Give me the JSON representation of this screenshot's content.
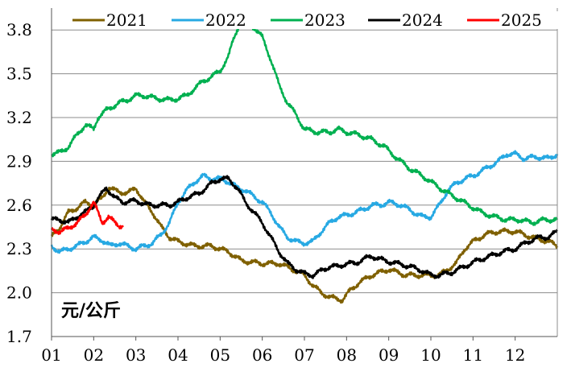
{
  "chart_data": {
    "type": "line",
    "unit_label": "元/公斤",
    "ylim": [
      1.7,
      3.95
    ],
    "yticks": [
      "1.7",
      "2.0",
      "2.3",
      "2.6",
      "2.9",
      "3.2",
      "3.5",
      "3.8"
    ],
    "xlim": [
      1,
      13
    ],
    "xticks": [
      "01",
      "02",
      "03",
      "04",
      "05",
      "06",
      "07",
      "08",
      "09",
      "10",
      "11",
      "12"
    ],
    "grid": "horizontal",
    "legend_position": "top",
    "series": [
      {
        "name": "2021",
        "color": "#7f6000",
        "points": [
          [
            1.0,
            2.38
          ],
          [
            1.2,
            2.45
          ],
          [
            1.4,
            2.55
          ],
          [
            1.6,
            2.58
          ],
          [
            1.8,
            2.62
          ],
          [
            2.0,
            2.6
          ],
          [
            2.2,
            2.65
          ],
          [
            2.35,
            2.72
          ],
          [
            2.5,
            2.7
          ],
          [
            2.8,
            2.68
          ],
          [
            3.0,
            2.72
          ],
          [
            3.2,
            2.62
          ],
          [
            3.4,
            2.55
          ],
          [
            3.6,
            2.45
          ],
          [
            3.8,
            2.38
          ],
          [
            4.0,
            2.35
          ],
          [
            4.4,
            2.32
          ],
          [
            4.8,
            2.32
          ],
          [
            5.0,
            2.3
          ],
          [
            5.2,
            2.28
          ],
          [
            5.5,
            2.22
          ],
          [
            6.0,
            2.2
          ],
          [
            6.4,
            2.2
          ],
          [
            6.8,
            2.15
          ],
          [
            7.0,
            2.12
          ],
          [
            7.2,
            2.05
          ],
          [
            7.4,
            2.0
          ],
          [
            7.6,
            1.97
          ],
          [
            7.9,
            1.95
          ],
          [
            8.1,
            2.02
          ],
          [
            8.3,
            2.07
          ],
          [
            8.6,
            2.12
          ],
          [
            9.0,
            2.16
          ],
          [
            9.4,
            2.12
          ],
          [
            9.8,
            2.12
          ],
          [
            10.2,
            2.12
          ],
          [
            10.6,
            2.2
          ],
          [
            10.8,
            2.3
          ],
          [
            11.0,
            2.35
          ],
          [
            11.3,
            2.4
          ],
          [
            11.6,
            2.42
          ],
          [
            12.0,
            2.42
          ],
          [
            12.4,
            2.38
          ],
          [
            12.8,
            2.35
          ],
          [
            13.0,
            2.32
          ]
        ]
      },
      {
        "name": "2022",
        "color": "#27a9e3",
        "points": [
          [
            1.0,
            2.32
          ],
          [
            1.2,
            2.28
          ],
          [
            1.4,
            2.3
          ],
          [
            1.6,
            2.32
          ],
          [
            1.8,
            2.35
          ],
          [
            2.0,
            2.38
          ],
          [
            2.2,
            2.36
          ],
          [
            2.4,
            2.32
          ],
          [
            2.6,
            2.34
          ],
          [
            2.8,
            2.32
          ],
          [
            3.0,
            2.3
          ],
          [
            3.2,
            2.32
          ],
          [
            3.4,
            2.34
          ],
          [
            3.6,
            2.4
          ],
          [
            3.8,
            2.48
          ],
          [
            4.0,
            2.62
          ],
          [
            4.2,
            2.7
          ],
          [
            4.4,
            2.76
          ],
          [
            4.6,
            2.8
          ],
          [
            4.8,
            2.78
          ],
          [
            5.0,
            2.78
          ],
          [
            5.2,
            2.76
          ],
          [
            5.4,
            2.72
          ],
          [
            5.6,
            2.7
          ],
          [
            5.8,
            2.66
          ],
          [
            6.0,
            2.62
          ],
          [
            6.2,
            2.55
          ],
          [
            6.4,
            2.45
          ],
          [
            6.6,
            2.38
          ],
          [
            6.8,
            2.35
          ],
          [
            7.0,
            2.34
          ],
          [
            7.2,
            2.35
          ],
          [
            7.4,
            2.42
          ],
          [
            7.6,
            2.48
          ],
          [
            7.8,
            2.52
          ],
          [
            8.0,
            2.53
          ],
          [
            8.2,
            2.55
          ],
          [
            8.4,
            2.57
          ],
          [
            8.6,
            2.6
          ],
          [
            8.8,
            2.6
          ],
          [
            9.0,
            2.62
          ],
          [
            9.3,
            2.6
          ],
          [
            9.6,
            2.55
          ],
          [
            9.8,
            2.52
          ],
          [
            10.0,
            2.52
          ],
          [
            10.2,
            2.6
          ],
          [
            10.4,
            2.7
          ],
          [
            10.6,
            2.75
          ],
          [
            10.8,
            2.78
          ],
          [
            11.0,
            2.8
          ],
          [
            11.3,
            2.85
          ],
          [
            11.6,
            2.9
          ],
          [
            11.8,
            2.95
          ],
          [
            12.0,
            2.95
          ],
          [
            12.2,
            2.92
          ],
          [
            12.5,
            2.93
          ],
          [
            12.8,
            2.92
          ],
          [
            13.0,
            2.95
          ]
        ]
      },
      {
        "name": "2023",
        "color": "#00b050",
        "points": [
          [
            1.0,
            2.95
          ],
          [
            1.2,
            2.96
          ],
          [
            1.4,
            3.0
          ],
          [
            1.6,
            3.08
          ],
          [
            1.8,
            3.15
          ],
          [
            2.0,
            3.12
          ],
          [
            2.1,
            3.2
          ],
          [
            2.3,
            3.25
          ],
          [
            2.6,
            3.3
          ],
          [
            2.8,
            3.32
          ],
          [
            3.0,
            3.35
          ],
          [
            3.2,
            3.35
          ],
          [
            3.5,
            3.33
          ],
          [
            3.8,
            3.32
          ],
          [
            4.0,
            3.33
          ],
          [
            4.2,
            3.35
          ],
          [
            4.4,
            3.4
          ],
          [
            4.6,
            3.45
          ],
          [
            4.8,
            3.48
          ],
          [
            5.0,
            3.52
          ],
          [
            5.2,
            3.62
          ],
          [
            5.3,
            3.72
          ],
          [
            5.4,
            3.8
          ],
          [
            5.5,
            3.86
          ],
          [
            5.6,
            3.85
          ],
          [
            5.8,
            3.82
          ],
          [
            6.0,
            3.75
          ],
          [
            6.2,
            3.6
          ],
          [
            6.4,
            3.42
          ],
          [
            6.6,
            3.3
          ],
          [
            6.8,
            3.22
          ],
          [
            7.0,
            3.12
          ],
          [
            7.3,
            3.1
          ],
          [
            7.6,
            3.1
          ],
          [
            7.8,
            3.12
          ],
          [
            8.0,
            3.1
          ],
          [
            8.3,
            3.08
          ],
          [
            8.6,
            3.05
          ],
          [
            8.9,
            3.0
          ],
          [
            9.2,
            2.92
          ],
          [
            9.5,
            2.85
          ],
          [
            9.8,
            2.8
          ],
          [
            10.0,
            2.76
          ],
          [
            10.3,
            2.7
          ],
          [
            10.6,
            2.65
          ],
          [
            10.9,
            2.6
          ],
          [
            11.2,
            2.55
          ],
          [
            11.5,
            2.52
          ],
          [
            11.8,
            2.5
          ],
          [
            12.1,
            2.5
          ],
          [
            12.4,
            2.48
          ],
          [
            12.7,
            2.5
          ],
          [
            13.0,
            2.5
          ]
        ]
      },
      {
        "name": "2024",
        "color": "#000000",
        "points": [
          [
            1.0,
            2.5
          ],
          [
            1.2,
            2.5
          ],
          [
            1.4,
            2.48
          ],
          [
            1.6,
            2.52
          ],
          [
            1.8,
            2.55
          ],
          [
            2.0,
            2.6
          ],
          [
            2.2,
            2.68
          ],
          [
            2.3,
            2.72
          ],
          [
            2.5,
            2.65
          ],
          [
            2.7,
            2.62
          ],
          [
            3.0,
            2.63
          ],
          [
            3.3,
            2.6
          ],
          [
            3.5,
            2.6
          ],
          [
            3.8,
            2.6
          ],
          [
            4.0,
            2.62
          ],
          [
            4.2,
            2.65
          ],
          [
            4.5,
            2.68
          ],
          [
            4.8,
            2.75
          ],
          [
            5.0,
            2.78
          ],
          [
            5.2,
            2.78
          ],
          [
            5.4,
            2.72
          ],
          [
            5.6,
            2.62
          ],
          [
            5.8,
            2.55
          ],
          [
            6.0,
            2.48
          ],
          [
            6.2,
            2.38
          ],
          [
            6.4,
            2.28
          ],
          [
            6.6,
            2.2
          ],
          [
            6.8,
            2.16
          ],
          [
            7.0,
            2.13
          ],
          [
            7.2,
            2.12
          ],
          [
            7.4,
            2.15
          ],
          [
            7.6,
            2.18
          ],
          [
            7.8,
            2.18
          ],
          [
            8.0,
            2.2
          ],
          [
            8.2,
            2.2
          ],
          [
            8.4,
            2.23
          ],
          [
            8.6,
            2.25
          ],
          [
            8.9,
            2.22
          ],
          [
            9.2,
            2.2
          ],
          [
            9.5,
            2.18
          ],
          [
            9.8,
            2.15
          ],
          [
            10.0,
            2.12
          ],
          [
            10.2,
            2.12
          ],
          [
            10.5,
            2.14
          ],
          [
            10.8,
            2.18
          ],
          [
            11.1,
            2.22
          ],
          [
            11.4,
            2.25
          ],
          [
            11.7,
            2.28
          ],
          [
            12.0,
            2.3
          ],
          [
            12.3,
            2.35
          ],
          [
            12.6,
            2.38
          ],
          [
            12.8,
            2.38
          ],
          [
            13.0,
            2.42
          ]
        ]
      },
      {
        "name": "2025",
        "color": "#ff0000",
        "points": [
          [
            1.0,
            2.43
          ],
          [
            1.2,
            2.42
          ],
          [
            1.4,
            2.44
          ],
          [
            1.6,
            2.48
          ],
          [
            1.8,
            2.53
          ],
          [
            1.9,
            2.58
          ],
          [
            2.0,
            2.62
          ],
          [
            2.1,
            2.55
          ],
          [
            2.2,
            2.48
          ],
          [
            2.35,
            2.52
          ],
          [
            2.5,
            2.48
          ],
          [
            2.6,
            2.46
          ],
          [
            2.7,
            2.46
          ]
        ]
      }
    ]
  }
}
